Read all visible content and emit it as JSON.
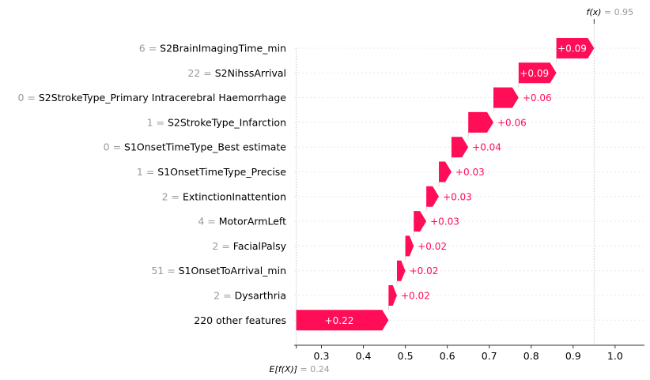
{
  "chart_data": {
    "type": "waterfall",
    "base_value": 0.24,
    "final_value": 0.95,
    "base_label": "E[f(X)]",
    "base_value_text": " = 0.24",
    "final_label": "f(x)",
    "final_value_text": " = 0.95",
    "features": [
      {
        "value": "6",
        "name": "S2BrainImagingTime_min",
        "contribution": 0.09,
        "label": "+0.09"
      },
      {
        "value": "22",
        "name": "S2NihssArrival",
        "contribution": 0.09,
        "label": "+0.09"
      },
      {
        "value": "0",
        "name": "S2StrokeType_Primary Intracerebral Haemorrhage",
        "contribution": 0.06,
        "label": "+0.06"
      },
      {
        "value": "1",
        "name": "S2StrokeType_Infarction",
        "contribution": 0.06,
        "label": "+0.06"
      },
      {
        "value": "0",
        "name": "S1OnsetTimeType_Best estimate",
        "contribution": 0.04,
        "label": "+0.04"
      },
      {
        "value": "1",
        "name": "S1OnsetTimeType_Precise",
        "contribution": 0.03,
        "label": "+0.03"
      },
      {
        "value": "2",
        "name": "ExtinctionInattention",
        "contribution": 0.03,
        "label": "+0.03"
      },
      {
        "value": "4",
        "name": "MotorArmLeft",
        "contribution": 0.03,
        "label": "+0.03"
      },
      {
        "value": "2",
        "name": "FacialPalsy",
        "contribution": 0.02,
        "label": "+0.02"
      },
      {
        "value": "51",
        "name": "S1OnsetToArrival_min",
        "contribution": 0.02,
        "label": "+0.02"
      },
      {
        "value": "2",
        "name": "Dysarthria",
        "contribution": 0.02,
        "label": "+0.02"
      },
      {
        "value": "",
        "name": "220 other features",
        "contribution": 0.22,
        "label": "+0.22"
      }
    ],
    "xticks": [
      "0.3",
      "0.4",
      "0.5",
      "0.6",
      "0.7",
      "0.8",
      "0.9",
      "1.0"
    ],
    "xlim": [
      0.235,
      1.07
    ],
    "colors": {
      "positive": "#ff0d57",
      "gridline": "#cccccc",
      "label_value": "#999999"
    }
  }
}
